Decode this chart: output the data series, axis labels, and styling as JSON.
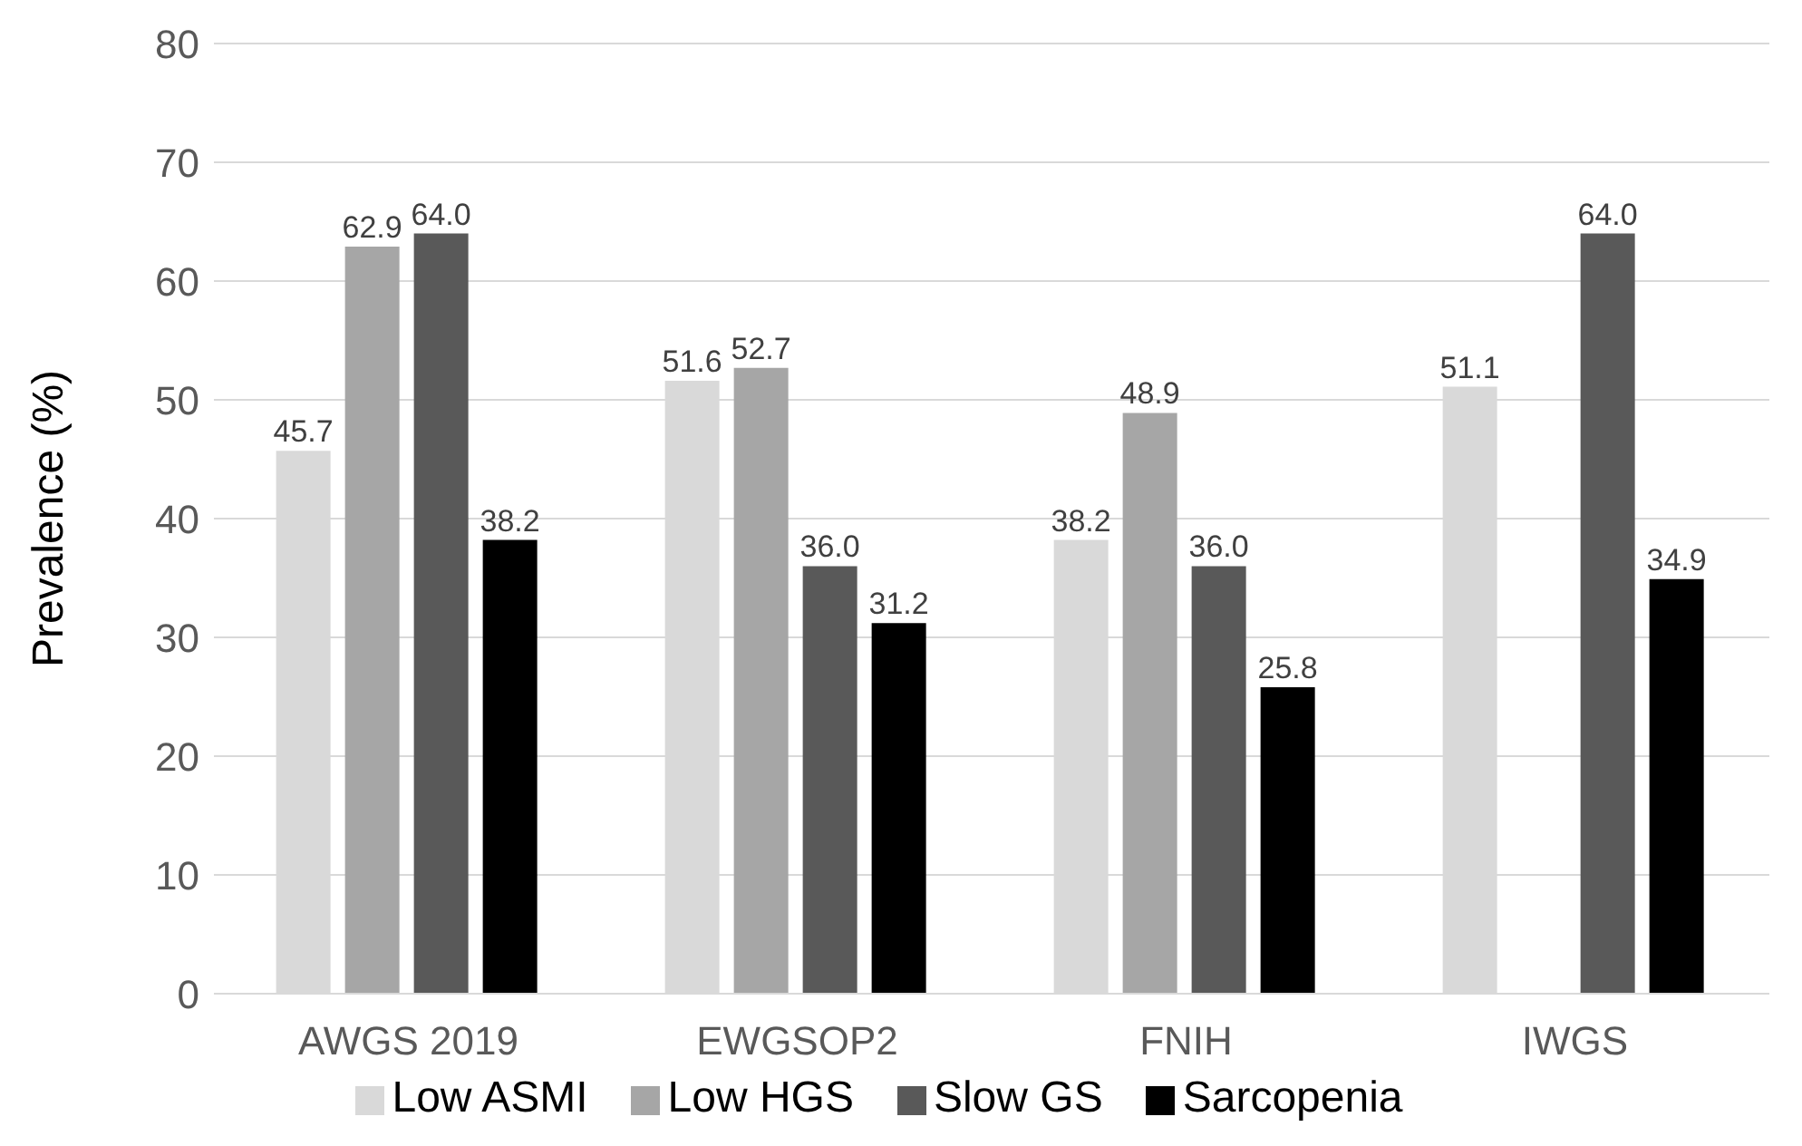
{
  "chart_data": {
    "type": "bar",
    "ylabel": "Prevalence (%)",
    "categories": [
      "AWGS 2019",
      "EWGSOP2",
      "FNIH",
      "IWGS"
    ],
    "series": [
      {
        "name": "Low ASMI",
        "color": "#d9d9d9",
        "values": [
          45.7,
          51.6,
          38.2,
          51.1
        ],
        "value_labels": [
          "45.7",
          "51.6",
          "38.2",
          "51.1"
        ]
      },
      {
        "name": "Low HGS",
        "color": "#a6a6a6",
        "values": [
          62.9,
          52.7,
          48.9,
          null
        ],
        "value_labels": [
          "62.9",
          "52.7",
          "48.9",
          null
        ]
      },
      {
        "name": "Slow GS",
        "color": "#595959",
        "values": [
          64.0,
          36.0,
          36.0,
          64.0
        ],
        "value_labels": [
          "64.0",
          "36.0",
          "36.0",
          "64.0"
        ]
      },
      {
        "name": "Sarcopenia",
        "color": "#000000",
        "values": [
          38.2,
          31.2,
          25.8,
          34.9
        ],
        "value_labels": [
          "38.2",
          "31.2",
          "25.8",
          "34.9"
        ]
      }
    ],
    "ylim": [
      0,
      80
    ],
    "yticks": [
      0,
      10,
      20,
      30,
      40,
      50,
      60,
      70,
      80
    ],
    "grid": "y",
    "legend": "bottom"
  }
}
